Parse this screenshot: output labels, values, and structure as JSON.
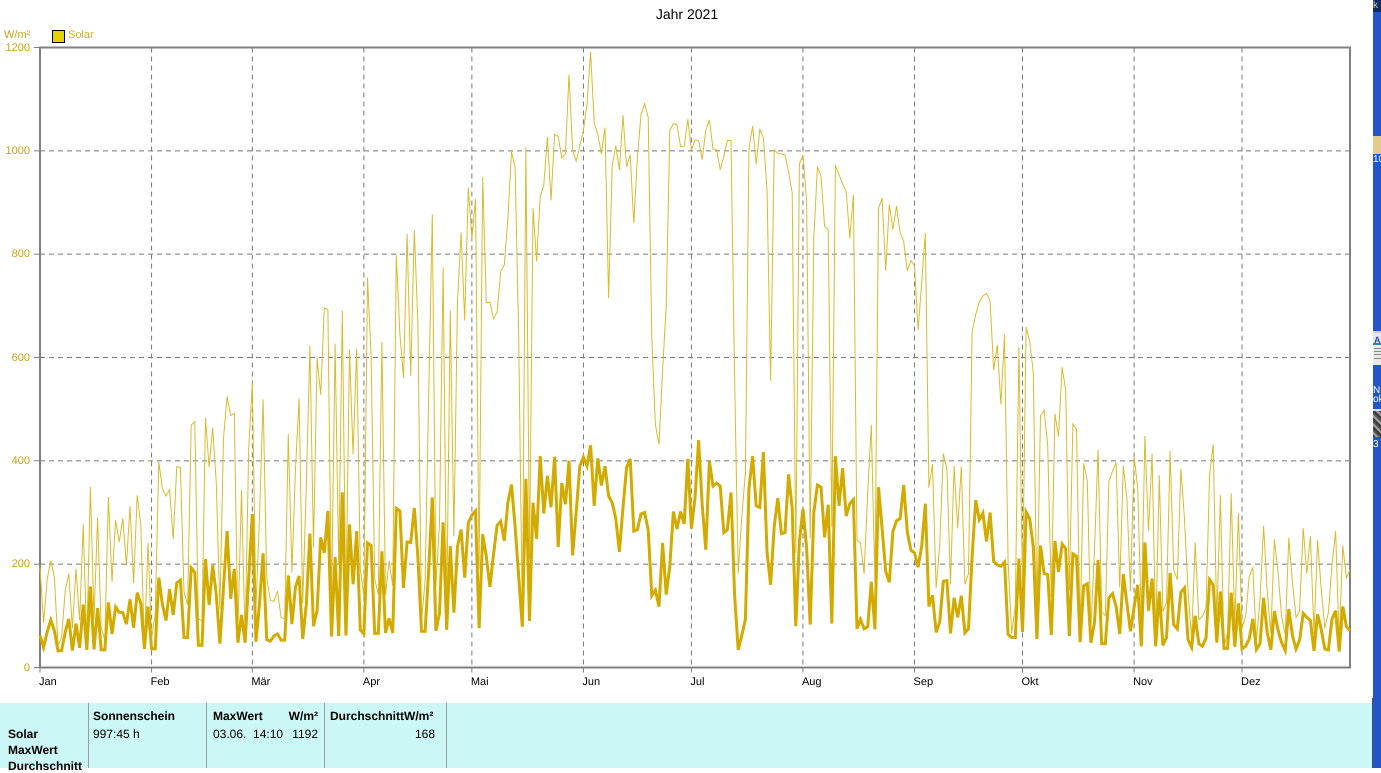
{
  "window": {
    "background": "#FFFFFF",
    "desktop_color": "#2355C8"
  },
  "chart": {
    "title": "Jahr 2021",
    "y_unit": "W/m²",
    "legend": [
      {
        "label": "Solar",
        "swatch_color": "#E6D200"
      }
    ]
  },
  "chart_data": {
    "type": "line",
    "title": "Jahr 2021",
    "xlabel": "",
    "ylabel": "W/m²",
    "ylim": [
      0,
      1200
    ],
    "y_ticks": [
      0,
      200,
      400,
      600,
      800,
      1000,
      1200
    ],
    "x_tick_labels": [
      "Jan",
      "Feb",
      "Mär",
      "Apr",
      "Mai",
      "Jun",
      "Jul",
      "Aug",
      "Sep",
      "Okt",
      "Nov",
      "Dez"
    ],
    "days_per_month": [
      31,
      28,
      31,
      30,
      31,
      30,
      31,
      31,
      30,
      31,
      30,
      31
    ],
    "grid": "dashed",
    "legend_position": "top-left",
    "axis_label_color": "#C8A411",
    "month_label_color": "#000000",
    "series": [
      {
        "name": "Solar Tagesmaximum (MaxWert)",
        "color": "#D9BB2E",
        "stroke_width": 1,
        "values": [
          195,
          86,
          171,
          207,
          175,
          42,
          58,
          148,
          182,
          76,
          191,
          91,
          277,
          49,
          349,
          94,
          290,
          76,
          54,
          330,
          166,
          285,
          243,
          289,
          197,
          312,
          163,
          333,
          276,
          41,
          242,
          56,
          102,
          398,
          346,
          332,
          344,
          249,
          389,
          387,
          147,
          121,
          469,
          476,
          94,
          90,
          483,
          388,
          464,
          357,
          113,
          444,
          525,
          488,
          492,
          72,
          344,
          53,
          423,
          551,
          114,
          291,
          519,
          175,
          130,
          128,
          148,
          97,
          94,
          452,
          184,
          385,
          521,
          124,
          351,
          623,
          233,
          599,
          528,
          696,
          693,
          123,
          627,
          199,
          690,
          119,
          615,
          413,
          617,
          190,
          137,
          755,
          605,
          172,
          141,
          630,
          140,
          206,
          159,
          799,
          645,
          561,
          839,
          564,
          846,
          666,
          90,
          168,
          528,
          877,
          157,
          280,
          774,
          110,
          691,
          254,
          709,
          842,
          672,
          929,
          830,
          907,
          191,
          949,
          706,
          707,
          675,
          688,
          766,
          779,
          870,
          998,
          968,
          642,
          95,
          1007,
          210,
          889,
          786,
          911,
          934,
          1027,
          904,
          1032,
          1028,
          986,
          994,
          1148,
          1000,
          980,
          1010,
          1040,
          1090,
          1192,
          1054,
          1032,
          994,
          1045,
          715,
          971,
          1010,
          963,
          1069,
          969,
          992,
          860,
          987,
          1070,
          1091,
          1065,
          640,
          470,
          432,
          575,
          700,
          1039,
          1053,
          1050,
          1008,
          1009,
          1061,
          1001,
          1021,
          1020,
          983,
          1040,
          1060,
          1003,
          1003,
          963,
          989,
          1020,
          1020,
          560,
          182,
          292,
          377,
          1005,
          1048,
          974,
          1041,
          1025,
          925,
          555,
          1002,
          995,
          994,
          992,
          959,
          918,
          221,
          975,
          992,
          903,
          250,
          830,
          969,
          952,
          854,
          847,
          273,
          972,
          954,
          936,
          921,
          831,
          915,
          246,
          241,
          181,
          339,
          470,
          166,
          889,
          909,
          768,
          896,
          848,
          893,
          842,
          825,
          768,
          788,
          778,
          653,
          745,
          841,
          348,
          394,
          153,
          235,
          414,
          385,
          161,
          390,
          269,
          389,
          161,
          182,
          648,
          683,
          708,
          719,
          724,
          709,
          575,
          624,
          509,
          644,
          204,
          66,
          120,
          620,
          156,
          659,
          631,
          571,
          116,
          487,
          498,
          430,
          136,
          491,
          447,
          581,
          537,
          149,
          471,
          461,
          74,
          395,
          361,
          74,
          229,
          422,
          108,
          100,
          361,
          380,
          397,
          155,
          391,
          327,
          148,
          409,
          348,
          97,
          448,
          264,
          414,
          59,
          372,
          108,
          126,
          419,
          189,
          170,
          385,
          287,
          150,
          55,
          242,
          93,
          99,
          116,
          372,
          432,
          89,
          333,
          37,
          69,
          337,
          82,
          299,
          76,
          98,
          175,
          194,
          51,
          132,
          274,
          148,
          66,
          248,
          186,
          99,
          63,
          251,
          166,
          97,
          109,
          270,
          182,
          254,
          64,
          247,
          152,
          76,
          106,
          199,
          264,
          51,
          236,
          172,
          190
        ]
      },
      {
        "name": "Solar Tagesdurchschnitt (Durchschnitt)",
        "color": "#D2AA00",
        "stroke_width": 3,
        "values": [
          62,
          39,
          69,
          92,
          71,
          32,
          33,
          68,
          94,
          33,
          85,
          38,
          122,
          34,
          157,
          35,
          115,
          34,
          34,
          126,
          65,
          117,
          107,
          106,
          84,
          132,
          77,
          145,
          124,
          36,
          118,
          36,
          36,
          174,
          122,
          91,
          152,
          102,
          164,
          169,
          58,
          58,
          193,
          184,
          43,
          43,
          210,
          121,
          198,
          140,
          46,
          155,
          264,
          133,
          191,
          48,
          102,
          48,
          172,
          297,
          50,
          123,
          221,
          54,
          51,
          61,
          65,
          53,
          53,
          178,
          84,
          156,
          177,
          55,
          122,
          259,
          80,
          110,
          252,
          222,
          303,
          60,
          214,
          61,
          339,
          62,
          277,
          161,
          264,
          73,
          65,
          241,
          236,
          66,
          66,
          225,
          67,
          95,
          67,
          308,
          303,
          154,
          243,
          242,
          309,
          213,
          70,
          70,
          189,
          329,
          71,
          105,
          281,
          73,
          235,
          106,
          234,
          267,
          174,
          280,
          295,
          303,
          76,
          258,
          215,
          156,
          219,
          275,
          283,
          245,
          320,
          354,
          273,
          176,
          79,
          365,
          90,
          319,
          249,
          409,
          298,
          371,
          310,
          408,
          233,
          357,
          316,
          400,
          217,
          301,
          389,
          407,
          390,
          430,
          313,
          405,
          352,
          390,
          332,
          319,
          288,
          224,
          310,
          387,
          404,
          264,
          267,
          297,
          300,
          266,
          139,
          150,
          118,
          241,
          141,
          196,
          302,
          268,
          302,
          278,
          404,
          269,
          328,
          440,
          315,
          228,
          399,
          351,
          357,
          351,
          261,
          267,
          339,
          140,
          34,
          62,
          93,
          348,
          409,
          313,
          310,
          417,
          224,
          160,
          273,
          328,
          259,
          261,
          374,
          307,
          80,
          245,
          307,
          231,
          83,
          300,
          353,
          349,
          252,
          315,
          85,
          409,
          313,
          386,
          293,
          317,
          325,
          75,
          93,
          75,
          79,
          166,
          74,
          349,
          269,
          186,
          165,
          263,
          284,
          288,
          353,
          262,
          227,
          222,
          194,
          235,
          317,
          118,
          140,
          68,
          88,
          167,
          168,
          66,
          135,
          97,
          139,
          67,
          75,
          214,
          324,
          286,
          299,
          244,
          300,
          205,
          199,
          196,
          204,
          64,
          58,
          58,
          211,
          69,
          301,
          288,
          233,
          55,
          236,
          182,
          180,
          63,
          245,
          185,
          239,
          230,
          61,
          220,
          215,
          49,
          158,
          162,
          48,
          87,
          208,
          46,
          46,
          135,
          143,
          118,
          65,
          181,
          124,
          70,
          117,
          160,
          41,
          242,
          110,
          172,
          41,
          147,
          43,
          58,
          183,
          83,
          75,
          146,
          154,
          54,
          39,
          100,
          46,
          41,
          57,
          170,
          160,
          48,
          147,
          37,
          37,
          145,
          40,
          124,
          36,
          41,
          55,
          94,
          35,
          46,
          135,
          68,
          34,
          109,
          73,
          48,
          33,
          113,
          62,
          36,
          53,
          105,
          97,
          91,
          32,
          103,
          74,
          36,
          34,
          94,
          110,
          31,
          118,
          79,
          72
        ]
      }
    ]
  },
  "table": {
    "background": "#CCF7F7",
    "row_labels": [
      "Solar",
      "MaxWert",
      "Durchschnitt"
    ],
    "col1_header": "Sonnenschein",
    "col1_value": "997:45 h",
    "col2_header_left": "MaxWert",
    "col2_header_right": "W/m²",
    "col2_value_left": "03.06.  14:10",
    "col2_value_right": "1192",
    "col3_header": "DurchschnittW/m²",
    "col3_value": "168"
  },
  "desktop": {
    "selected_label_fragment": "k",
    "icon_label_1": "10",
    "icon_label_2a": "N",
    "icon_label_2b": "ok",
    "icon_label_3": "3"
  }
}
